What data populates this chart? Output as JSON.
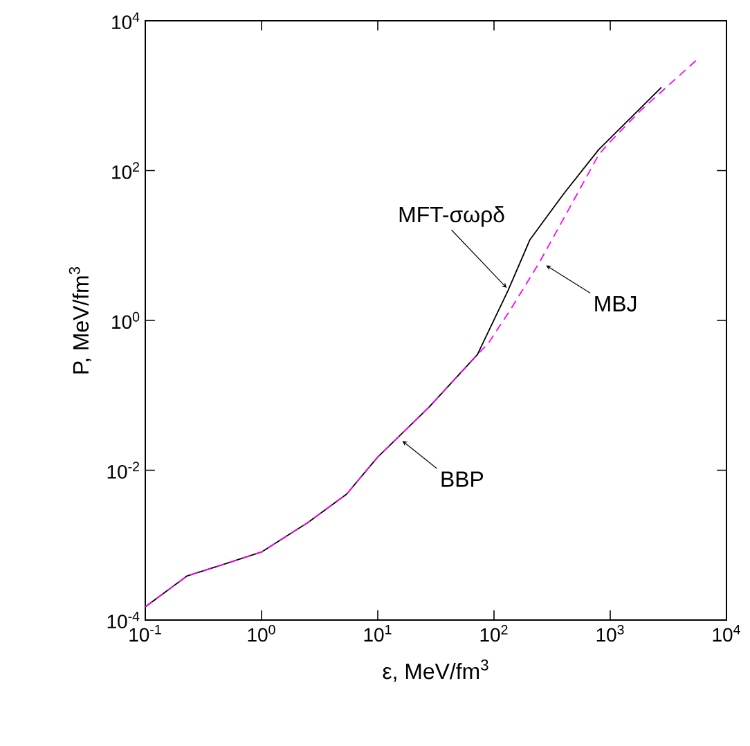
{
  "chart_data": {
    "type": "line",
    "log": "xy",
    "xlabel": "ε, MeV/fm$^{3}$",
    "ylabel": "P,  MeV/fm$^{3}$",
    "xlim": [
      0.1,
      10000
    ],
    "ylim": [
      0.0001,
      10000
    ],
    "xticks": [
      {
        "value": 0.1,
        "label": "10$^{-1}$"
      },
      {
        "value": 1,
        "label": "10$^{0}$"
      },
      {
        "value": 10,
        "label": "10$^{1}$"
      },
      {
        "value": 100,
        "label": "10$^{2}$"
      },
      {
        "value": 1000,
        "label": "10$^{3}$"
      },
      {
        "value": 10000,
        "label": "10$^{4}$"
      }
    ],
    "yticks": [
      {
        "value": 0.0001,
        "label": "10$^{-4}$"
      },
      {
        "value": 0.01,
        "label": "10$^{-2}$"
      },
      {
        "value": 1,
        "label": "10$^{0}$"
      },
      {
        "value": 100,
        "label": "10$^{2}$"
      },
      {
        "value": 10000,
        "label": "10$^{4}$"
      }
    ],
    "series": [
      {
        "name": "MFT-σωρδ",
        "color": "#000000",
        "line_style": "solid",
        "x": [
          0.1,
          0.23,
          0.45,
          1.0,
          2.5,
          5.4,
          10,
          27.5,
          72,
          132,
          204,
          398,
          794,
          2750
        ],
        "values": [
          0.00015,
          0.00039,
          0.00054,
          0.00081,
          0.002,
          0.0048,
          0.015,
          0.069,
          0.35,
          2.5,
          12,
          49,
          190,
          1290
        ]
      },
      {
        "name": "MBJ",
        "color": "#ff00ff",
        "line_style": "dashed",
        "x": [
          0.1,
          0.23,
          0.45,
          1.0,
          2.5,
          5.4,
          10,
          27.5,
          72,
          89,
          141,
          245,
          427,
          794,
          977,
          1820,
          5750
        ],
        "values": [
          0.00015,
          0.00039,
          0.00054,
          0.00081,
          0.002,
          0.0048,
          0.015,
          0.069,
          0.35,
          0.49,
          1.45,
          5.9,
          28,
          162,
          234,
          631,
          3160
        ]
      }
    ],
    "annotations": [
      {
        "text": "BBP",
        "x": 15,
        "y": 0.028
      }
    ]
  }
}
